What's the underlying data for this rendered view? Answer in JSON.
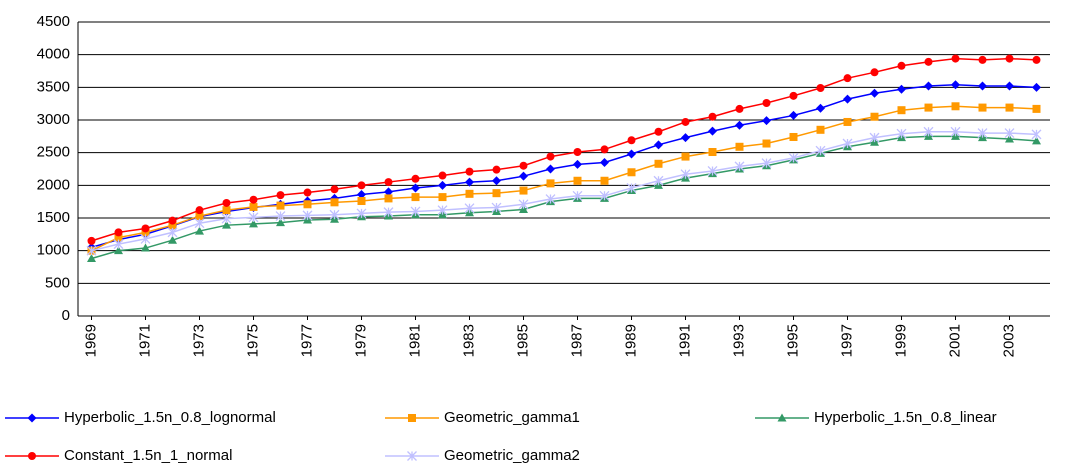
{
  "chart_data": {
    "type": "line",
    "x": [
      1969,
      1970,
      1971,
      1972,
      1973,
      1974,
      1975,
      1976,
      1977,
      1978,
      1979,
      1980,
      1981,
      1982,
      1983,
      1984,
      1985,
      1986,
      1987,
      1988,
      1989,
      1990,
      1991,
      1992,
      1993,
      1994,
      1995,
      1996,
      1997,
      1998,
      1999,
      2000,
      2001,
      2002,
      2003,
      2004
    ],
    "xlim": [
      1968.5,
      2004.5
    ],
    "xticks": [
      1969,
      1971,
      1973,
      1975,
      1977,
      1979,
      1981,
      1983,
      1985,
      1987,
      1989,
      1991,
      1993,
      1995,
      1997,
      1999,
      2001,
      2003
    ],
    "ylim": [
      0,
      4500
    ],
    "yticks": [
      0,
      500,
      1000,
      1500,
      2000,
      2500,
      3000,
      3500,
      4000,
      4500
    ],
    "grid": true,
    "legend": "bottom",
    "series": [
      {
        "name": "Hyperbolic_1.5n_0.8_lognormal",
        "color": "#0000ff",
        "marker": "diamond",
        "values": [
          1050,
          1170,
          1250,
          1380,
          1520,
          1600,
          1660,
          1710,
          1760,
          1800,
          1860,
          1900,
          1960,
          2000,
          2050,
          2070,
          2140,
          2250,
          2320,
          2350,
          2480,
          2620,
          2730,
          2830,
          2920,
          2990,
          3070,
          3180,
          3320,
          3410,
          3470,
          3520,
          3540,
          3520,
          3520,
          3500
        ]
      },
      {
        "name": "Geometric_gamma1",
        "color": "#ff9900",
        "marker": "square",
        "values": [
          1000,
          1200,
          1280,
          1390,
          1530,
          1620,
          1670,
          1690,
          1710,
          1740,
          1760,
          1800,
          1820,
          1820,
          1870,
          1880,
          1920,
          2030,
          2070,
          2070,
          2200,
          2330,
          2440,
          2510,
          2590,
          2640,
          2740,
          2850,
          2970,
          3050,
          3150,
          3190,
          3210,
          3190,
          3190,
          3170
        ]
      },
      {
        "name": "Hyperbolic_1.5n_0.8_linear",
        "color": "#339966",
        "marker": "triangle",
        "values": [
          880,
          1000,
          1040,
          1160,
          1300,
          1390,
          1410,
          1430,
          1470,
          1480,
          1520,
          1530,
          1550,
          1550,
          1580,
          1600,
          1630,
          1750,
          1800,
          1800,
          1920,
          2000,
          2110,
          2180,
          2250,
          2300,
          2390,
          2490,
          2590,
          2660,
          2730,
          2750,
          2750,
          2730,
          2710,
          2680
        ]
      },
      {
        "name": "Constant_1.5n_1_normal",
        "color": "#ff0000",
        "marker": "circle",
        "values": [
          1150,
          1280,
          1340,
          1460,
          1620,
          1730,
          1780,
          1850,
          1890,
          1940,
          2000,
          2050,
          2100,
          2150,
          2210,
          2240,
          2300,
          2440,
          2510,
          2550,
          2690,
          2820,
          2970,
          3050,
          3170,
          3260,
          3370,
          3490,
          3640,
          3730,
          3830,
          3890,
          3940,
          3920,
          3940,
          3920
        ]
      },
      {
        "name": "Geometric_gamma2",
        "color": "#c0c0ff",
        "marker": "star",
        "values": [
          1000,
          1100,
          1180,
          1280,
          1420,
          1490,
          1510,
          1530,
          1540,
          1550,
          1570,
          1590,
          1600,
          1620,
          1650,
          1660,
          1710,
          1790,
          1840,
          1840,
          1960,
          2070,
          2170,
          2220,
          2290,
          2340,
          2420,
          2530,
          2640,
          2730,
          2790,
          2820,
          2820,
          2800,
          2800,
          2780
        ]
      }
    ]
  }
}
